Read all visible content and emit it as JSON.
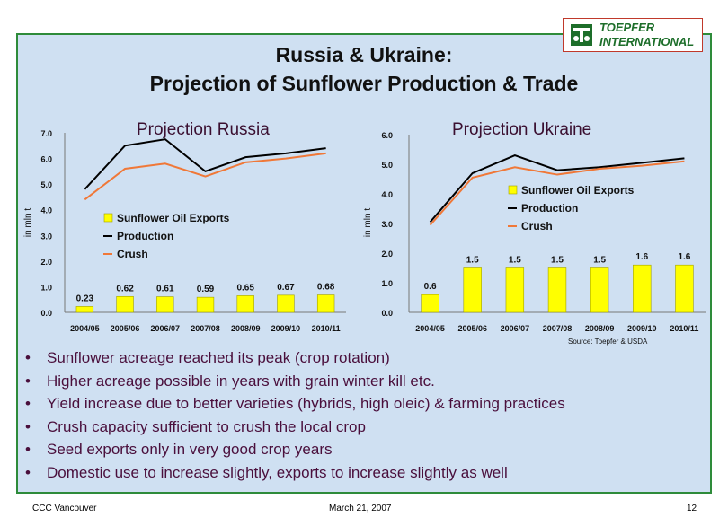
{
  "slide": {
    "title_line1": "Russia & Ukraine:",
    "title_line2": "Projection of Sunflower Production & Trade",
    "logo_line1": "TOEPFER",
    "logo_line2": "INTERNATIONAL",
    "source": "Source: Toepfer & USDA",
    "bullets": [
      "Sunflower acreage reached its peak (crop rotation)",
      "Higher acreage possible in years with grain winter kill etc.",
      "Yield increase due to better varieties (hybrids, high oleic) & farming practices",
      "Crush capacity sufficient to crush the local crop",
      "Seed exports only in very good crop years",
      "Domestic use to increase slightly, exports to increase slightly as well"
    ],
    "bullet_glyph": "•",
    "footer_left": "CCC Vancouver",
    "footer_center": "March 21, 2007",
    "footer_right": "12"
  },
  "colors": {
    "bar": "#ffff00",
    "bar_stroke": "#a0a000",
    "production": "#000000",
    "crush": "#f07838",
    "title_text": "#111111",
    "bullet_text": "#4a0f3c",
    "border": "#2e8b3a",
    "panel": "#cfe0f2"
  },
  "chart_data": [
    {
      "type": "bar",
      "title": "Projection Russia",
      "ylabel": "in mln t",
      "ylim": [
        0,
        7
      ],
      "yticks": [
        "0.0",
        "1.0",
        "2.0",
        "3.0",
        "4.0",
        "5.0",
        "6.0",
        "7.0"
      ],
      "categories": [
        "2004/05",
        "2005/06",
        "2006/07",
        "2007/08",
        "2008/09",
        "2009/10",
        "2010/11"
      ],
      "series": [
        {
          "name": "Sunflower Oil Exports",
          "kind": "bar",
          "values": [
            0.23,
            0.62,
            0.61,
            0.59,
            0.65,
            0.67,
            0.68
          ],
          "labels": [
            "0.23",
            "0.62",
            "0.61",
            "0.59",
            "0.65",
            "0.67",
            "0.68"
          ]
        },
        {
          "name": "Production",
          "kind": "line",
          "values": [
            4.8,
            6.5,
            6.75,
            5.5,
            6.05,
            6.2,
            6.4
          ]
        },
        {
          "name": "Crush",
          "kind": "line",
          "values": [
            4.4,
            5.6,
            5.8,
            5.3,
            5.85,
            6.0,
            6.2
          ]
        }
      ],
      "legend": "center-left"
    },
    {
      "type": "bar",
      "title": "Projection Ukraine",
      "ylabel": "in mln t",
      "ylim": [
        0,
        6
      ],
      "yticks": [
        "0.0",
        "1.0",
        "2.0",
        "3.0",
        "4.0",
        "5.0",
        "6.0"
      ],
      "categories": [
        "2004/05",
        "2005/06",
        "2006/07",
        "2007/08",
        "2008/09",
        "2009/10",
        "2010/11"
      ],
      "series": [
        {
          "name": "Sunflower Oil Exports",
          "kind": "bar",
          "values": [
            0.6,
            1.5,
            1.5,
            1.5,
            1.5,
            1.6,
            1.6
          ],
          "labels": [
            "0.6",
            "1.5",
            "1.5",
            "1.5",
            "1.5",
            "1.6",
            "1.6"
          ]
        },
        {
          "name": "Production",
          "kind": "line",
          "values": [
            3.05,
            4.7,
            5.3,
            4.8,
            4.9,
            5.05,
            5.2
          ]
        },
        {
          "name": "Crush",
          "kind": "line",
          "values": [
            2.95,
            4.55,
            4.9,
            4.65,
            4.85,
            4.95,
            5.1
          ]
        }
      ],
      "legend": "upper-right"
    }
  ]
}
